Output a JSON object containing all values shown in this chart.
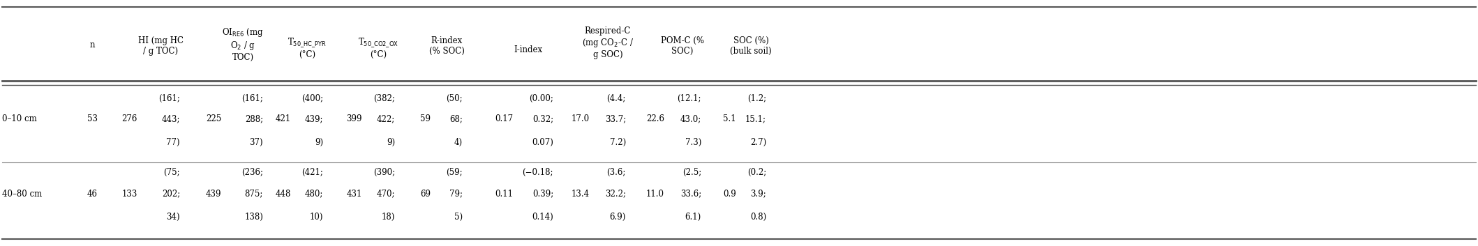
{
  "figsize": [
    21.18,
    3.53
  ],
  "dpi": 100,
  "bg_color": "#ffffff",
  "text_color": "#000000",
  "font_size_header": 8.5,
  "font_size_data": 8.5,
  "col_headers": [
    "",
    "n",
    "HI (mg HC\n/ g TOC)",
    "OI_RE6 (mg\nO2 / g\nTOC)",
    "T50_HC_PYR\n(C)",
    "T50_CO2_OX\n(C)",
    "R-index\n(% SOC)",
    "I-index",
    "Respired-C\n(mg CO2-C /\ng SOC)",
    "POM-C (%\nSOC)",
    "SOC (%)\n(bulk soil)"
  ],
  "row1_label": "0–10 cm",
  "row2_label": "40–80 cm",
  "data": {
    "0-10": {
      "n": "53",
      "HI_mean": "276",
      "HI_s1": "(161;",
      "HI_s2": "443;",
      "HI_s3": "77)",
      "OI_mean": "225",
      "OI_s1": "(161;",
      "OI_s2": "288;",
      "OI_s3": "37)",
      "T50HC_mean": "421",
      "T50HC_s1": "(400;",
      "T50HC_s2": "439;",
      "T50HC_s3": "9)",
      "T50CO2_mean": "399",
      "T50CO2_s1": "(382;",
      "T50CO2_s2": "422;",
      "T50CO2_s3": "9)",
      "R_mean": "59",
      "R_s1": "(50;",
      "R_s2": "68;",
      "R_s3": "4)",
      "I_mean": "0.17",
      "I_s1": "(0.00;",
      "I_s2": "0.32;",
      "I_s3": "0.07)",
      "Resp_mean": "17.0",
      "Resp_s1": "(4.4;",
      "Resp_s2": "33.7;",
      "Resp_s3": "7.2)",
      "POM_mean": "22.6",
      "POM_s1": "(12.1;",
      "POM_s2": "43.0;",
      "POM_s3": "7.3)",
      "SOC_mean": "5.1",
      "SOC_s1": "(1.2;",
      "SOC_s2": "15.1;",
      "SOC_s3": "2.7)"
    },
    "40-80": {
      "n": "46",
      "HI_mean": "133",
      "HI_s1": "(75;",
      "HI_s2": "202;",
      "HI_s3": "34)",
      "OI_mean": "439",
      "OI_s1": "(236;",
      "OI_s2": "875;",
      "OI_s3": "138)",
      "T50HC_mean": "448",
      "T50HC_s1": "(421;",
      "T50HC_s2": "480;",
      "T50HC_s3": "10)",
      "T50CO2_mean": "431",
      "T50CO2_s1": "(390;",
      "T50CO2_s2": "470;",
      "T50CO2_s3": "18)",
      "R_mean": "69",
      "R_s1": "(59;",
      "R_s2": "79;",
      "R_s3": "5)",
      "I_mean": "0.11",
      "I_s1": "(−0.18;",
      "I_s2": "0.39;",
      "I_s3": "0.14)",
      "Resp_mean": "13.4",
      "Resp_s1": "(3.6;",
      "Resp_s2": "32.2;",
      "Resp_s3": "6.9)",
      "POM_mean": "11.0",
      "POM_s1": "(2.5;",
      "POM_s2": "33.6;",
      "POM_s3": "6.1)",
      "SOC_mean": "0.9",
      "SOC_s1": "(0.2;",
      "SOC_s2": "3.9;",
      "SOC_s3": "0.8)"
    }
  }
}
